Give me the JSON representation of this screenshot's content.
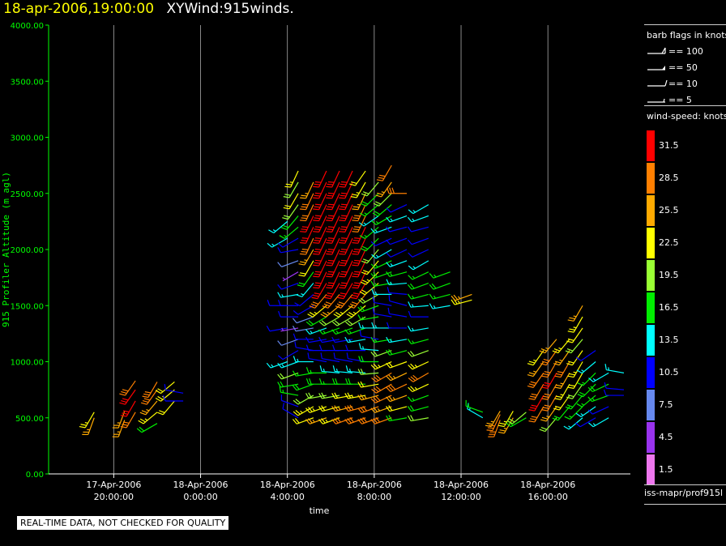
{
  "header": {
    "datetime": "18-apr-2006,19:00:00",
    "plot_name": "XYWind:915winds."
  },
  "colors": {
    "axis": "#00ff00",
    "grid": "#aaaaaa",
    "title_date": "#ffff00"
  },
  "barb_legend": {
    "title": "barb flags in knots",
    "items": [
      {
        "label": "== 100",
        "kind": "flag"
      },
      {
        "label": "== 50",
        "kind": "triangle"
      },
      {
        "label": "== 10",
        "kind": "full"
      },
      {
        "label": "== 5",
        "kind": "half"
      }
    ]
  },
  "speed_legend": {
    "title": "wind-speed: knots",
    "items": [
      {
        "label": "31.5",
        "color": "#ff0000"
      },
      {
        "label": "28.5",
        "color": "#ff7f00"
      },
      {
        "label": "25.5",
        "color": "#ffaa00"
      },
      {
        "label": "22.5",
        "color": "#ffff00"
      },
      {
        "label": "19.5",
        "color": "#99ff33"
      },
      {
        "label": "16.5",
        "color": "#00ee00"
      },
      {
        "label": "13.5",
        "color": "#00ffff"
      },
      {
        "label": "10.5",
        "color": "#0000ff"
      },
      {
        "label": "7.5",
        "color": "#6688ee"
      },
      {
        "label": "4.5",
        "color": "#9933ee"
      },
      {
        "label": "1.5",
        "color": "#ee77ee"
      }
    ]
  },
  "footer_label": "iss-mapr/prof915l",
  "qc_note": "REAL-TIME DATA, NOT CHECKED FOR QUALITY",
  "chart_data": {
    "type": "scatter",
    "subtype": "wind-barbs",
    "xlabel": "time",
    "ylabel": "915 Profiler Altitude (m agl)",
    "ylim": [
      0,
      4000
    ],
    "yticks": [
      "0.00",
      "500.00",
      "1000.00",
      "1500.00",
      "2000.00",
      "2500.00",
      "3000.00",
      "3500.00",
      "4000.00"
    ],
    "xlim_hours": [
      -3,
      23.8
    ],
    "xticks": [
      {
        "hour": 0,
        "date": "17-Apr-2006",
        "time": "20:00:00"
      },
      {
        "hour": 4,
        "date": "18-Apr-2006",
        "time": "0:00:00"
      },
      {
        "hour": 8,
        "date": "18-Apr-2006",
        "time": "4:00:00"
      },
      {
        "hour": 12,
        "date": "18-Apr-2006",
        "time": "8:00:00"
      },
      {
        "hour": 16,
        "date": "18-Apr-2006",
        "time": "12:00:00"
      },
      {
        "hour": 20,
        "date": "18-Apr-2006",
        "time": "16:00:00"
      }
    ],
    "grid_vertical": true,
    "legend": "right",
    "columns": [
      {
        "hour": -0.9,
        "alt": [
          500,
          550
        ],
        "speed": [
          25,
          24
        ],
        "dir": [
          200,
          210
        ]
      },
      {
        "hour": 0.5,
        "alt": [
          480,
          560
        ],
        "speed": [
          27,
          26
        ],
        "dir": [
          200,
          200
        ]
      },
      {
        "hour": 1.0,
        "alt": [
          550,
          650,
          750,
          830
        ],
        "speed": [
          28,
          31,
          31,
          28
        ],
        "dir": [
          210,
          210,
          215,
          215
        ]
      },
      {
        "hour": 2.0,
        "alt": [
          450,
          550,
          650,
          750,
          820
        ],
        "speed": [
          18,
          24,
          25,
          28,
          30
        ],
        "dir": [
          240,
          230,
          220,
          215,
          210
        ]
      },
      {
        "hour": 2.8,
        "alt": [
          650,
          750,
          820
        ],
        "speed": [
          22,
          24,
          22
        ],
        "dir": [
          220,
          230,
          230
        ]
      },
      {
        "hour": 3.2,
        "alt": [
          650,
          720
        ],
        "speed": [
          10,
          10
        ],
        "dir": [
          270,
          280
        ]
      },
      {
        "hour": 8.0,
        "alt": [
          1000,
          1300,
          1500,
          2100,
          2250
        ],
        "speed": [
          14,
          10,
          10,
          13,
          13
        ],
        "dir": [
          250,
          260,
          270,
          240,
          230
        ]
      },
      {
        "hour": 8.5,
        "alt": [
          500,
          600,
          700,
          800,
          900,
          1000,
          1100,
          1200,
          1300,
          1400,
          1500,
          1600,
          1700,
          1800,
          1900,
          2000,
          2100,
          2200,
          2300,
          2400,
          2500,
          2600,
          2700
        ],
        "speed": [
          10,
          12,
          16,
          18,
          20,
          14,
          10,
          8,
          6,
          10,
          12,
          14,
          10,
          5,
          8,
          10,
          12,
          16,
          18,
          20,
          22,
          20,
          24
        ],
        "dir": [
          300,
          290,
          280,
          260,
          250,
          250,
          240,
          250,
          260,
          270,
          270,
          260,
          250,
          240,
          250,
          260,
          240,
          230,
          220,
          215,
          210,
          210,
          205
        ]
      },
      {
        "hour": 9.2,
        "alt": [
          500,
          600,
          700,
          800,
          900,
          1000,
          1100,
          1200,
          1300,
          1400,
          1500,
          1600,
          1700,
          1800,
          1900,
          2000,
          2100,
          2200,
          2300,
          2400,
          2500,
          2600
        ],
        "speed": [
          22,
          24,
          20,
          18,
          16,
          14,
          12,
          10,
          8,
          8,
          10,
          12,
          14,
          18,
          22,
          26,
          30,
          31,
          31,
          30,
          28,
          26
        ],
        "dir": [
          250,
          240,
          240,
          250,
          260,
          270,
          280,
          270,
          260,
          250,
          240,
          230,
          220,
          215,
          210,
          210,
          205,
          205,
          205,
          205,
          205,
          205
        ]
      },
      {
        "hour": 9.8,
        "alt": [
          500,
          600,
          700,
          800,
          900,
          1000,
          1100,
          1200,
          1300,
          1400,
          1500,
          1600,
          1700,
          1800,
          1900,
          2000,
          2100,
          2200,
          2300,
          2400,
          2500,
          2600,
          2700
        ],
        "speed": [
          26,
          24,
          20,
          18,
          16,
          12,
          10,
          12,
          14,
          18,
          24,
          28,
          31,
          31,
          31,
          31,
          31,
          31,
          31,
          31,
          31,
          31,
          31
        ],
        "dir": [
          250,
          250,
          260,
          270,
          270,
          280,
          270,
          260,
          250,
          240,
          230,
          220,
          210,
          205,
          205,
          205,
          205,
          205,
          205,
          205,
          205,
          205,
          205
        ]
      },
      {
        "hour": 10.4,
        "alt": [
          500,
          600,
          700,
          800,
          900,
          1000,
          1100,
          1200,
          1300,
          1400,
          1500,
          1600,
          1700,
          1800,
          1900,
          2000,
          2100,
          2200,
          2300,
          2400,
          2500,
          2600,
          2700
        ],
        "speed": [
          24,
          22,
          20,
          16,
          14,
          12,
          10,
          12,
          16,
          20,
          26,
          30,
          31,
          31,
          31,
          31,
          31,
          31,
          31,
          31,
          31,
          31,
          31
        ],
        "dir": [
          250,
          255,
          260,
          270,
          275,
          280,
          270,
          260,
          250,
          240,
          230,
          220,
          210,
          205,
          205,
          205,
          205,
          205,
          205,
          205,
          205,
          205,
          205
        ]
      },
      {
        "hour": 11.0,
        "alt": [
          500,
          600,
          700,
          800,
          900,
          1000,
          1100,
          1200,
          1300,
          1400,
          1500,
          1600,
          1700,
          1800,
          1900,
          2000,
          2100,
          2200,
          2300,
          2400,
          2500,
          2600,
          2700
        ],
        "speed": [
          28,
          26,
          22,
          18,
          14,
          12,
          10,
          12,
          16,
          20,
          24,
          28,
          31,
          31,
          31,
          31,
          31,
          31,
          31,
          31,
          31,
          31,
          31
        ],
        "dir": [
          250,
          255,
          260,
          270,
          275,
          280,
          270,
          260,
          250,
          240,
          230,
          220,
          210,
          205,
          205,
          205,
          205,
          205,
          205,
          205,
          205,
          205,
          205
        ]
      },
      {
        "hour": 11.6,
        "alt": [
          500,
          600,
          700,
          800,
          900,
          1000,
          1100,
          1200,
          1300,
          1400,
          1500,
          1600,
          1700,
          1800,
          1900,
          2000,
          2100,
          2200,
          2300,
          2400,
          2500,
          2600,
          2700
        ],
        "speed": [
          30,
          28,
          24,
          18,
          14,
          12,
          12,
          14,
          16,
          20,
          24,
          28,
          31,
          31,
          31,
          31,
          31,
          31,
          30,
          28,
          26,
          24,
          22
        ],
        "dir": [
          250,
          255,
          260,
          270,
          275,
          280,
          270,
          260,
          250,
          240,
          230,
          220,
          210,
          205,
          205,
          205,
          205,
          205,
          205,
          205,
          205,
          210,
          215
        ]
      },
      {
        "hour": 12.2,
        "alt": [
          500,
          600,
          700,
          800,
          900,
          1000,
          1100,
          1200,
          1300,
          1400,
          1500,
          1600,
          1700,
          1800,
          1900,
          2000,
          2100,
          2200,
          2300,
          2400,
          2500,
          2600
        ],
        "speed": [
          30,
          28,
          26,
          22,
          20,
          18,
          14,
          12,
          14,
          16,
          18,
          20,
          22,
          24,
          22,
          20,
          18,
          16,
          14,
          16,
          18,
          20
        ],
        "dir": [
          250,
          250,
          255,
          260,
          265,
          270,
          275,
          280,
          270,
          260,
          250,
          240,
          230,
          225,
          220,
          220,
          225,
          230,
          235,
          230,
          225,
          220
        ]
      },
      {
        "hour": 12.8,
        "alt": [
          500,
          600,
          700,
          800,
          900,
          1000,
          1100,
          1200,
          1300,
          1400,
          1500,
          1600,
          1700,
          1800,
          1900,
          2000,
          2100,
          2200,
          2300,
          2400,
          2500,
          2600,
          2750
        ],
        "speed": [
          28,
          26,
          30,
          30,
          28,
          24,
          20,
          16,
          14,
          12,
          12,
          14,
          16,
          18,
          16,
          14,
          12,
          14,
          16,
          18,
          20,
          26,
          30
        ],
        "dir": [
          250,
          250,
          245,
          240,
          240,
          245,
          250,
          260,
          270,
          280,
          280,
          270,
          260,
          250,
          245,
          240,
          245,
          250,
          240,
          230,
          225,
          215,
          210
        ]
      },
      {
        "hour": 13.5,
        "alt": [
          500,
          600,
          700,
          800,
          900,
          1000,
          1100,
          1200,
          1300,
          1400,
          1500,
          1600,
          1700,
          1800,
          1900,
          2000,
          2100,
          2200,
          2300,
          2400,
          2500
        ],
        "speed": [
          18,
          22,
          26,
          28,
          26,
          22,
          18,
          14,
          12,
          10,
          10,
          12,
          14,
          16,
          14,
          12,
          10,
          12,
          14,
          12,
          30
        ],
        "dir": [
          260,
          255,
          250,
          245,
          245,
          250,
          255,
          260,
          270,
          280,
          285,
          275,
          265,
          255,
          250,
          245,
          250,
          255,
          250,
          245,
          270
        ]
      },
      {
        "hour": 14.5,
        "alt": [
          500,
          600,
          700,
          800,
          900,
          1000,
          1100,
          1200,
          1300,
          1400,
          1500,
          1600,
          1700,
          1800,
          1900,
          2000,
          2100,
          2200,
          2300,
          2400
        ],
        "speed": [
          20,
          18,
          16,
          24,
          28,
          24,
          20,
          16,
          14,
          12,
          14,
          16,
          18,
          16,
          14,
          12,
          10,
          12,
          14,
          13
        ],
        "dir": [
          260,
          255,
          250,
          245,
          240,
          245,
          250,
          255,
          260,
          270,
          265,
          255,
          250,
          245,
          240,
          245,
          250,
          255,
          250,
          240
        ]
      },
      {
        "hour": 15.5,
        "alt": [
          1500,
          1600,
          1700,
          1800
        ],
        "speed": [
          14,
          16,
          18,
          16
        ],
        "dir": [
          260,
          255,
          250,
          250
        ]
      },
      {
        "hour": 16.5,
        "alt": [
          1550,
          1600
        ],
        "speed": [
          24,
          26
        ],
        "dir": [
          255,
          250
        ]
      },
      {
        "hour": 17.0,
        "alt": [
          500,
          550
        ],
        "speed": [
          14,
          16
        ],
        "dir": [
          300,
          290
        ]
      },
      {
        "hour": 17.8,
        "alt": [
          480,
          530,
          560
        ],
        "speed": [
          28,
          28,
          26
        ],
        "dir": [
          200,
          205,
          210
        ]
      },
      {
        "hour": 18.4,
        "alt": [
          500,
          560
        ],
        "speed": [
          26,
          24
        ],
        "dir": [
          210,
          210
        ]
      },
      {
        "hour": 19.0,
        "alt": [
          500,
          550
        ],
        "speed": [
          18,
          20
        ],
        "dir": [
          240,
          230
        ]
      },
      {
        "hour": 19.8,
        "alt": [
          600,
          700,
          800,
          900,
          1000,
          1100
        ],
        "speed": [
          30,
          31,
          30,
          28,
          26,
          24
        ],
        "dir": [
          210,
          210,
          210,
          215,
          215,
          215
        ]
      },
      {
        "hour": 20.4,
        "alt": [
          500,
          600,
          700,
          800,
          900,
          1000,
          1100,
          1200
        ],
        "speed": [
          20,
          26,
          28,
          30,
          31,
          30,
          28,
          26
        ],
        "dir": [
          220,
          215,
          210,
          210,
          210,
          210,
          215,
          220
        ]
      },
      {
        "hour": 21.0,
        "alt": [
          600,
          700,
          800,
          900,
          1000,
          1100,
          1200
        ],
        "speed": [
          18,
          22,
          24,
          26,
          28,
          26,
          24
        ],
        "dir": [
          220,
          215,
          210,
          210,
          210,
          215,
          220
        ]
      },
      {
        "hour": 21.6,
        "alt": [
          500,
          600,
          700,
          800,
          900,
          1000,
          1100,
          1200,
          1300,
          1400,
          1500
        ],
        "speed": [
          14,
          16,
          18,
          20,
          22,
          24,
          22,
          20,
          22,
          24,
          26
        ],
        "dir": [
          230,
          225,
          220,
          215,
          210,
          210,
          215,
          220,
          215,
          210,
          210
        ]
      },
      {
        "hour": 22.2,
        "alt": [
          500,
          600,
          700,
          800,
          900,
          1000,
          1100
        ],
        "speed": [
          12,
          14,
          16,
          18,
          16,
          14,
          12
        ],
        "dir": [
          240,
          235,
          230,
          225,
          225,
          230,
          235
        ]
      },
      {
        "hour": 22.8,
        "alt": [
          500,
          600,
          700,
          800,
          900
        ],
        "speed": [
          14,
          12,
          16,
          18,
          14
        ],
        "dir": [
          240,
          245,
          250,
          245,
          240
        ]
      },
      {
        "hour": 23.5,
        "alt": [
          700,
          750,
          900
        ],
        "speed": [
          10,
          11,
          13
        ],
        "dir": [
          270,
          275,
          280
        ]
      }
    ]
  }
}
